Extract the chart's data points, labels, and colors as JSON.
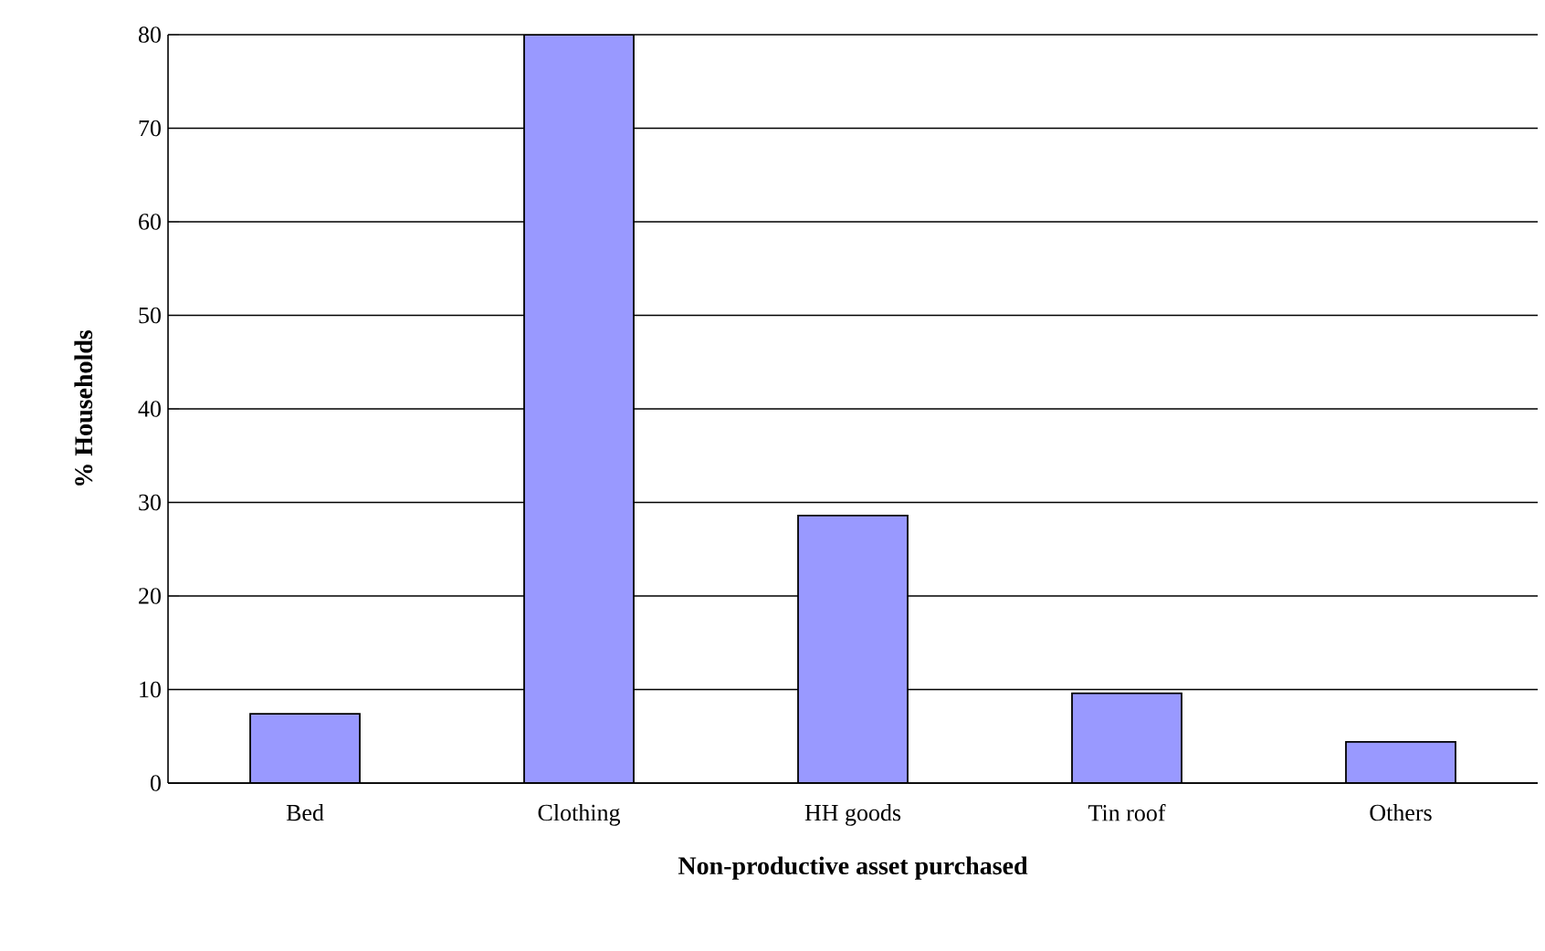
{
  "chart_data": {
    "type": "bar",
    "xlabel": "Non-productive asset purchased",
    "ylabel": "% Households",
    "categories": [
      "Bed",
      "Clothing",
      "HH goods",
      "Tin roof",
      "Others"
    ],
    "values": [
      7.4,
      80,
      28.6,
      9.6,
      4.4
    ],
    "color": "#9999ff",
    "ylim": [
      0,
      80
    ],
    "yticks": [
      0,
      10,
      20,
      30,
      40,
      50,
      60,
      70,
      80
    ],
    "grid": "y"
  }
}
